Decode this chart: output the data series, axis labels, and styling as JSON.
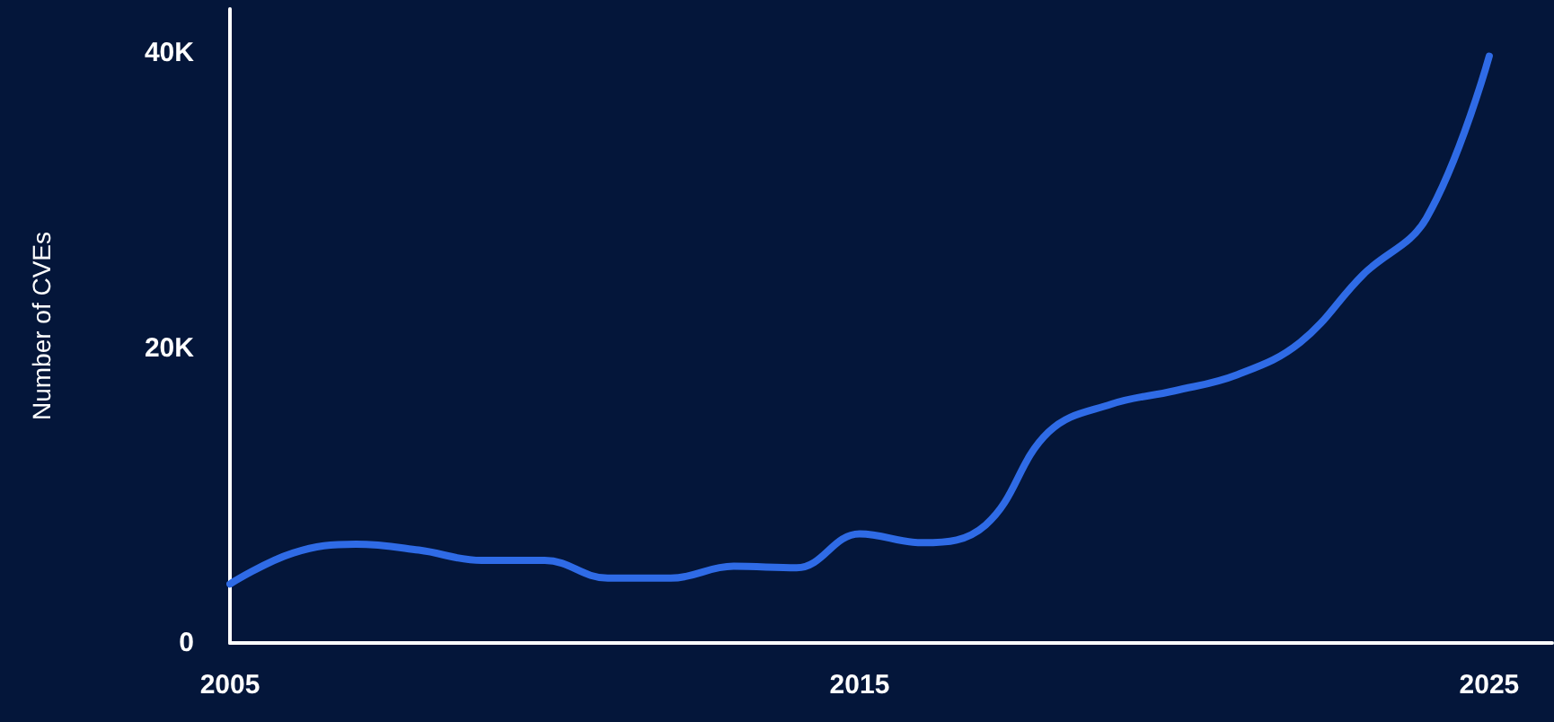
{
  "chart_data": {
    "type": "line",
    "ylabel": "Number of CVEs",
    "x": [
      2005,
      2006,
      2007,
      2008,
      2009,
      2010,
      2011,
      2012,
      2013,
      2014,
      2015,
      2016,
      2017,
      2018,
      2019,
      2020,
      2021,
      2022,
      2023,
      2024,
      2025
    ],
    "series": [
      {
        "color": "#2f6be6",
        "values": [
          4000,
          6100,
          6700,
          6300,
          5600,
          5600,
          4400,
          4400,
          5200,
          5100,
          7400,
          6800,
          8000,
          14300,
          16200,
          17100,
          18200,
          20400,
          25000,
          28800,
          39800
        ]
      }
    ],
    "xlim": [
      2005,
      2026
    ],
    "xticks": [
      2005,
      2015,
      2025
    ],
    "ylim": [
      0,
      43000
    ],
    "yticks": [
      {
        "value": 0,
        "label": "0"
      },
      {
        "value": 20000,
        "label": "20K"
      },
      {
        "value": 40000,
        "label": "40K"
      }
    ],
    "grid": false,
    "marker": "none",
    "line_style": "solid"
  }
}
